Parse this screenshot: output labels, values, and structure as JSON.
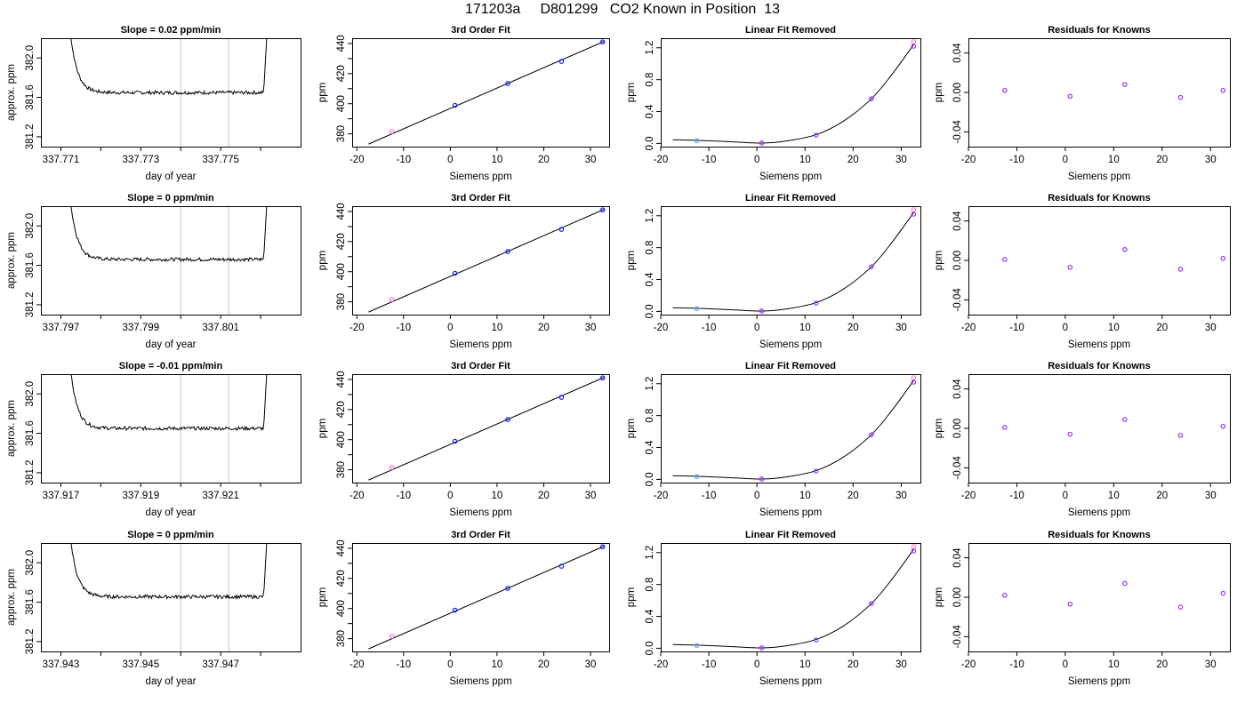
{
  "page_title": "171203a     D801299   CO2 Known in Position  13",
  "colors": {
    "axis": "#000000",
    "trace": "#000000",
    "window_line": "#c8c8c8",
    "point_blue": "#1a1aff",
    "point_purple": "#9933ff",
    "point_lightblue": "#66aaff",
    "point_pink": "#ff77cc"
  },
  "chart_data": [
    {
      "type": "line",
      "title": "Slope =  0.02  ppm/min",
      "xlabel": "day of year",
      "ylabel": "approx. ppm",
      "xlim": [
        337.7705,
        337.777
      ],
      "ylim": [
        381.1,
        382.2
      ],
      "x_ticks": [
        337.771,
        337.772,
        337.773,
        337.774,
        337.775,
        337.776
      ],
      "x_tick_labels": [
        "337.771",
        "",
        "337.773",
        "",
        "337.775",
        ""
      ],
      "y_ticks": [
        381.2,
        381.6,
        382.0
      ],
      "y_tick_labels": [
        "381.2",
        "381.6",
        "382.0"
      ],
      "window": [
        337.774,
        337.7752
      ],
      "trace": {
        "x_start": 337.7712,
        "x_end": 337.7762,
        "baseline": 381.648,
        "peak_start": 382.4,
        "peak_end": 382.4
      }
    },
    {
      "type": "line",
      "title": "3rd Order Fit",
      "xlabel": "Siemens ppm",
      "ylabel": "ppm",
      "xlim": [
        -21,
        34
      ],
      "ylim": [
        371.5,
        443.5
      ],
      "x_ticks": [
        -20,
        -10,
        0,
        10,
        20,
        30
      ],
      "x_tick_labels": [
        "-20",
        "-10",
        "0",
        "10",
        "20",
        "30"
      ],
      "y_ticks": [
        380,
        390,
        400,
        410,
        420,
        430,
        440
      ],
      "y_tick_labels": [
        "380",
        "",
        "400",
        "",
        "420",
        "",
        "440"
      ],
      "fit_line": {
        "x": [
          -17.5,
          33
        ],
        "y": [
          373.2,
          441.5
        ]
      },
      "points": [
        {
          "x": -12.5,
          "y": 381.6,
          "color": "#ff77cc"
        },
        {
          "x": 1.0,
          "y": 398.9,
          "color": "#1a1aff"
        },
        {
          "x": 12.3,
          "y": 413.4,
          "color": "#1a1aff"
        },
        {
          "x": 23.8,
          "y": 428.1,
          "color": "#1a1aff"
        },
        {
          "x": 32.6,
          "y": 441.0,
          "color": "#1a1aff"
        }
      ]
    },
    {
      "type": "line",
      "title": "Linear Fit Removed",
      "xlabel": "Siemens ppm",
      "ylabel": "ppm",
      "xlim": [
        -20,
        34
      ],
      "ylim": [
        -0.04,
        1.32
      ],
      "x_ticks": [
        -20,
        -10,
        0,
        10,
        20,
        30
      ],
      "x_tick_labels": [
        "-20",
        "-10",
        "0",
        "10",
        "20",
        "30"
      ],
      "y_ticks": [
        0.0,
        0.4,
        0.8,
        1.2
      ],
      "y_tick_labels": [
        "0.0",
        "0.4",
        "0.8",
        "1.2"
      ],
      "curve": {
        "x": [
          -17.5,
          -12.5,
          -5,
          1.0,
          6,
          12.3,
          18,
          23.8,
          28,
          32.6
        ],
        "y": [
          0.046,
          0.04,
          0.02,
          0.005,
          0.03,
          0.11,
          0.28,
          0.56,
          0.86,
          1.24
        ]
      },
      "points": [
        {
          "x": -12.5,
          "y": 0.035,
          "color": "#66aaff"
        },
        {
          "x": 1.0,
          "y": 0.005,
          "color": "#9933ff"
        },
        {
          "x": 12.3,
          "y": 0.105,
          "color": "#9933ff"
        },
        {
          "x": 23.8,
          "y": 0.56,
          "color": "#9933ff"
        },
        {
          "x": 32.6,
          "y": 1.22,
          "color": "#9933ff"
        },
        {
          "x": 32.6,
          "y": 1.275,
          "color": "#ff77cc"
        }
      ]
    },
    {
      "type": "scatter",
      "title": "Residuals for Knowns",
      "xlabel": "Siemens ppm",
      "ylabel": "ppm",
      "xlim": [
        -20,
        34
      ],
      "ylim": [
        -0.055,
        0.055
      ],
      "x_ticks": [
        -20,
        -10,
        0,
        10,
        20,
        30
      ],
      "x_tick_labels": [
        "-20",
        "-10",
        "0",
        "10",
        "20",
        "30"
      ],
      "y_ticks": [
        -0.04,
        0.0,
        0.04
      ],
      "y_tick_labels": [
        "-0.04",
        "0.00",
        "0.04"
      ],
      "points": [
        {
          "x": -12.5,
          "y": 0.002,
          "color": "#9933ff"
        },
        {
          "x": 1.0,
          "y": -0.004,
          "color": "#9933ff"
        },
        {
          "x": 12.3,
          "y": 0.008,
          "color": "#9933ff"
        },
        {
          "x": 23.8,
          "y": -0.005,
          "color": "#9933ff"
        },
        {
          "x": 32.6,
          "y": 0.002,
          "color": "#9933ff"
        }
      ]
    },
    {
      "type": "line",
      "title": "Slope =  0  ppm/min",
      "xlabel": "day of year",
      "ylabel": "approx. ppm",
      "xlim": [
        337.7965,
        337.803
      ],
      "ylim": [
        381.1,
        382.2
      ],
      "x_ticks": [
        337.797,
        337.798,
        337.799,
        337.8,
        337.801,
        337.802
      ],
      "x_tick_labels": [
        "337.797",
        "",
        "337.799",
        "",
        "337.801",
        ""
      ],
      "y_ticks": [
        381.2,
        381.6,
        382.0
      ],
      "y_tick_labels": [
        "381.2",
        "381.6",
        "382.0"
      ],
      "window": [
        337.8,
        337.8012
      ],
      "trace": {
        "x_start": 337.7972,
        "x_end": 337.8022,
        "baseline": 381.66,
        "peak_start": 382.4,
        "peak_end": 382.4
      }
    },
    {
      "type": "line",
      "title": "3rd Order Fit",
      "xlabel": "Siemens ppm",
      "ylabel": "ppm",
      "xlim": [
        -21,
        34
      ],
      "ylim": [
        371.5,
        443.5
      ],
      "x_ticks": [
        -20,
        -10,
        0,
        10,
        20,
        30
      ],
      "x_tick_labels": [
        "-20",
        "-10",
        "0",
        "10",
        "20",
        "30"
      ],
      "y_ticks": [
        380,
        390,
        400,
        410,
        420,
        430,
        440
      ],
      "y_tick_labels": [
        "380",
        "",
        "400",
        "",
        "420",
        "",
        "440"
      ],
      "fit_line": {
        "x": [
          -17.5,
          33
        ],
        "y": [
          373.2,
          441.5
        ]
      },
      "points": [
        {
          "x": -12.5,
          "y": 381.6,
          "color": "#ff77cc"
        },
        {
          "x": 1.0,
          "y": 398.9,
          "color": "#1a1aff"
        },
        {
          "x": 12.3,
          "y": 413.4,
          "color": "#1a1aff"
        },
        {
          "x": 23.8,
          "y": 428.1,
          "color": "#1a1aff"
        },
        {
          "x": 32.6,
          "y": 441.0,
          "color": "#1a1aff"
        }
      ]
    },
    {
      "type": "line",
      "title": "Linear Fit Removed",
      "xlabel": "Siemens ppm",
      "ylabel": "ppm",
      "xlim": [
        -20,
        34
      ],
      "ylim": [
        -0.04,
        1.32
      ],
      "x_ticks": [
        -20,
        -10,
        0,
        10,
        20,
        30
      ],
      "x_tick_labels": [
        "-20",
        "-10",
        "0",
        "10",
        "20",
        "30"
      ],
      "y_ticks": [
        0.0,
        0.4,
        0.8,
        1.2
      ],
      "y_tick_labels": [
        "0.0",
        "0.4",
        "0.8",
        "1.2"
      ],
      "curve": {
        "x": [
          -17.5,
          -12.5,
          -5,
          1.0,
          6,
          12.3,
          18,
          23.8,
          28,
          32.6
        ],
        "y": [
          0.046,
          0.04,
          0.02,
          0.005,
          0.03,
          0.11,
          0.28,
          0.56,
          0.86,
          1.24
        ]
      },
      "points": [
        {
          "x": -12.5,
          "y": 0.035,
          "color": "#66aaff"
        },
        {
          "x": 1.0,
          "y": 0.005,
          "color": "#9933ff"
        },
        {
          "x": 12.3,
          "y": 0.105,
          "color": "#9933ff"
        },
        {
          "x": 23.8,
          "y": 0.56,
          "color": "#9933ff"
        },
        {
          "x": 32.6,
          "y": 1.22,
          "color": "#9933ff"
        },
        {
          "x": 32.6,
          "y": 1.275,
          "color": "#ff77cc"
        }
      ]
    },
    {
      "type": "scatter",
      "title": "Residuals for Knowns",
      "xlabel": "Siemens ppm",
      "ylabel": "ppm",
      "xlim": [
        -20,
        34
      ],
      "ylim": [
        -0.055,
        0.055
      ],
      "x_ticks": [
        -20,
        -10,
        0,
        10,
        20,
        30
      ],
      "x_tick_labels": [
        "-20",
        "-10",
        "0",
        "10",
        "20",
        "30"
      ],
      "y_ticks": [
        -0.04,
        0.0,
        0.04
      ],
      "y_tick_labels": [
        "-0.04",
        "0.00",
        "0.04"
      ],
      "points": [
        {
          "x": -12.5,
          "y": 0.001,
          "color": "#9933ff"
        },
        {
          "x": 1.0,
          "y": -0.007,
          "color": "#9933ff"
        },
        {
          "x": 12.3,
          "y": 0.011,
          "color": "#9933ff"
        },
        {
          "x": 23.8,
          "y": -0.009,
          "color": "#9933ff"
        },
        {
          "x": 32.6,
          "y": 0.002,
          "color": "#9933ff"
        }
      ]
    },
    {
      "type": "line",
      "title": "Slope =  -0.01  ppm/min",
      "xlabel": "day of year",
      "ylabel": "approx. ppm",
      "xlim": [
        337.9165,
        337.923
      ],
      "ylim": [
        381.1,
        382.2
      ],
      "x_ticks": [
        337.917,
        337.918,
        337.919,
        337.92,
        337.921,
        337.922
      ],
      "x_tick_labels": [
        "337.917",
        "",
        "337.919",
        "",
        "337.921",
        ""
      ],
      "y_ticks": [
        381.2,
        381.6,
        382.0
      ],
      "y_tick_labels": [
        "381.2",
        "381.6",
        "382.0"
      ],
      "window": [
        337.92,
        337.9212
      ],
      "trace": {
        "x_start": 337.9172,
        "x_end": 337.9222,
        "baseline": 381.65,
        "peak_start": 382.4,
        "peak_end": 382.4
      }
    },
    {
      "type": "line",
      "title": "3rd Order Fit",
      "xlabel": "Siemens ppm",
      "ylabel": "ppm",
      "xlim": [
        -21,
        34
      ],
      "ylim": [
        371.5,
        443.5
      ],
      "x_ticks": [
        -20,
        -10,
        0,
        10,
        20,
        30
      ],
      "x_tick_labels": [
        "-20",
        "-10",
        "0",
        "10",
        "20",
        "30"
      ],
      "y_ticks": [
        380,
        390,
        400,
        410,
        420,
        430,
        440
      ],
      "y_tick_labels": [
        "380",
        "",
        "400",
        "",
        "420",
        "",
        "440"
      ],
      "fit_line": {
        "x": [
          -17.5,
          33
        ],
        "y": [
          373.2,
          441.5
        ]
      },
      "points": [
        {
          "x": -12.5,
          "y": 381.6,
          "color": "#ff77cc"
        },
        {
          "x": 1.0,
          "y": 398.9,
          "color": "#1a1aff"
        },
        {
          "x": 12.3,
          "y": 413.4,
          "color": "#1a1aff"
        },
        {
          "x": 23.8,
          "y": 428.1,
          "color": "#1a1aff"
        },
        {
          "x": 32.6,
          "y": 441.0,
          "color": "#1a1aff"
        }
      ]
    },
    {
      "type": "line",
      "title": "Linear Fit Removed",
      "xlabel": "Siemens ppm",
      "ylabel": "ppm",
      "xlim": [
        -20,
        34
      ],
      "ylim": [
        -0.04,
        1.32
      ],
      "x_ticks": [
        -20,
        -10,
        0,
        10,
        20,
        30
      ],
      "x_tick_labels": [
        "-20",
        "-10",
        "0",
        "10",
        "20",
        "30"
      ],
      "y_ticks": [
        0.0,
        0.4,
        0.8,
        1.2
      ],
      "y_tick_labels": [
        "0.0",
        "0.4",
        "0.8",
        "1.2"
      ],
      "curve": {
        "x": [
          -17.5,
          -12.5,
          -5,
          1.0,
          6,
          12.3,
          18,
          23.8,
          28,
          32.6
        ],
        "y": [
          0.046,
          0.04,
          0.02,
          0.005,
          0.03,
          0.11,
          0.28,
          0.56,
          0.86,
          1.24
        ]
      },
      "points": [
        {
          "x": -12.5,
          "y": 0.035,
          "color": "#66aaff"
        },
        {
          "x": 1.0,
          "y": 0.005,
          "color": "#9933ff"
        },
        {
          "x": 12.3,
          "y": 0.105,
          "color": "#9933ff"
        },
        {
          "x": 23.8,
          "y": 0.56,
          "color": "#9933ff"
        },
        {
          "x": 32.6,
          "y": 1.22,
          "color": "#9933ff"
        },
        {
          "x": 32.6,
          "y": 1.275,
          "color": "#ff77cc"
        }
      ]
    },
    {
      "type": "scatter",
      "title": "Residuals for Knowns",
      "xlabel": "Siemens ppm",
      "ylabel": "ppm",
      "xlim": [
        -20,
        34
      ],
      "ylim": [
        -0.055,
        0.055
      ],
      "x_ticks": [
        -20,
        -10,
        0,
        10,
        20,
        30
      ],
      "x_tick_labels": [
        "-20",
        "-10",
        "0",
        "10",
        "20",
        "30"
      ],
      "y_ticks": [
        -0.04,
        0.0,
        0.04
      ],
      "y_tick_labels": [
        "-0.04",
        "0.00",
        "0.04"
      ],
      "points": [
        {
          "x": -12.5,
          "y": 0.001,
          "color": "#9933ff"
        },
        {
          "x": 1.0,
          "y": -0.006,
          "color": "#9933ff"
        },
        {
          "x": 12.3,
          "y": 0.009,
          "color": "#9933ff"
        },
        {
          "x": 23.8,
          "y": -0.007,
          "color": "#9933ff"
        },
        {
          "x": 32.6,
          "y": 0.002,
          "color": "#9933ff"
        }
      ]
    },
    {
      "type": "line",
      "title": "Slope =  0  ppm/min",
      "xlabel": "day of year",
      "ylabel": "approx. ppm",
      "xlim": [
        337.9425,
        337.949
      ],
      "ylim": [
        381.1,
        382.2
      ],
      "x_ticks": [
        337.943,
        337.944,
        337.945,
        337.946,
        337.947,
        337.948
      ],
      "x_tick_labels": [
        "337.943",
        "",
        "337.945",
        "",
        "337.947",
        ""
      ],
      "y_ticks": [
        381.2,
        381.6,
        382.0
      ],
      "y_tick_labels": [
        "381.2",
        "381.6",
        "382.0"
      ],
      "window": [
        337.946,
        337.9472
      ],
      "trace": {
        "x_start": 337.9432,
        "x_end": 337.9482,
        "baseline": 381.655,
        "peak_start": 382.4,
        "peak_end": 382.4
      }
    },
    {
      "type": "line",
      "title": "3rd Order Fit",
      "xlabel": "Siemens ppm",
      "ylabel": "ppm",
      "xlim": [
        -21,
        34
      ],
      "ylim": [
        371.5,
        443.5
      ],
      "x_ticks": [
        -20,
        -10,
        0,
        10,
        20,
        30
      ],
      "x_tick_labels": [
        "-20",
        "-10",
        "0",
        "10",
        "20",
        "30"
      ],
      "y_ticks": [
        380,
        390,
        400,
        410,
        420,
        430,
        440
      ],
      "y_tick_labels": [
        "380",
        "",
        "400",
        "",
        "420",
        "",
        "440"
      ],
      "fit_line": {
        "x": [
          -17.5,
          33
        ],
        "y": [
          373.2,
          441.5
        ]
      },
      "points": [
        {
          "x": -12.5,
          "y": 381.6,
          "color": "#ff77cc"
        },
        {
          "x": 1.0,
          "y": 398.9,
          "color": "#1a1aff"
        },
        {
          "x": 12.3,
          "y": 413.4,
          "color": "#1a1aff"
        },
        {
          "x": 23.8,
          "y": 428.1,
          "color": "#1a1aff"
        },
        {
          "x": 32.6,
          "y": 441.0,
          "color": "#1a1aff"
        }
      ]
    },
    {
      "type": "line",
      "title": "Linear Fit Removed",
      "xlabel": "Siemens ppm",
      "ylabel": "ppm",
      "xlim": [
        -20,
        34
      ],
      "ylim": [
        -0.04,
        1.32
      ],
      "x_ticks": [
        -20,
        -10,
        0,
        10,
        20,
        30
      ],
      "x_tick_labels": [
        "-20",
        "-10",
        "0",
        "10",
        "20",
        "30"
      ],
      "y_ticks": [
        0.0,
        0.4,
        0.8,
        1.2
      ],
      "y_tick_labels": [
        "0.0",
        "0.4",
        "0.8",
        "1.2"
      ],
      "curve": {
        "x": [
          -17.5,
          -12.5,
          -5,
          1.0,
          6,
          12.3,
          18,
          23.8,
          28,
          32.6
        ],
        "y": [
          0.046,
          0.04,
          0.02,
          0.005,
          0.03,
          0.11,
          0.28,
          0.56,
          0.86,
          1.24
        ]
      },
      "points": [
        {
          "x": -12.5,
          "y": 0.035,
          "color": "#66aaff"
        },
        {
          "x": 1.0,
          "y": 0.005,
          "color": "#9933ff"
        },
        {
          "x": 12.3,
          "y": 0.105,
          "color": "#9933ff"
        },
        {
          "x": 23.8,
          "y": 0.56,
          "color": "#9933ff"
        },
        {
          "x": 32.6,
          "y": 1.22,
          "color": "#9933ff"
        },
        {
          "x": 32.6,
          "y": 1.275,
          "color": "#ff77cc"
        }
      ]
    },
    {
      "type": "scatter",
      "title": "Residuals for Knowns",
      "xlabel": "Siemens ppm",
      "ylabel": "ppm",
      "xlim": [
        -20,
        34
      ],
      "ylim": [
        -0.055,
        0.055
      ],
      "x_ticks": [
        -20,
        -10,
        0,
        10,
        20,
        30
      ],
      "x_tick_labels": [
        "-20",
        "-10",
        "0",
        "10",
        "20",
        "30"
      ],
      "y_ticks": [
        -0.04,
        0.0,
        0.04
      ],
      "y_tick_labels": [
        "-0.04",
        "0.00",
        "0.04"
      ],
      "points": [
        {
          "x": -12.5,
          "y": 0.002,
          "color": "#9933ff"
        },
        {
          "x": 1.0,
          "y": -0.007,
          "color": "#9933ff"
        },
        {
          "x": 12.3,
          "y": 0.014,
          "color": "#9933ff"
        },
        {
          "x": 23.8,
          "y": -0.01,
          "color": "#9933ff"
        },
        {
          "x": 32.6,
          "y": 0.004,
          "color": "#9933ff"
        }
      ]
    }
  ]
}
